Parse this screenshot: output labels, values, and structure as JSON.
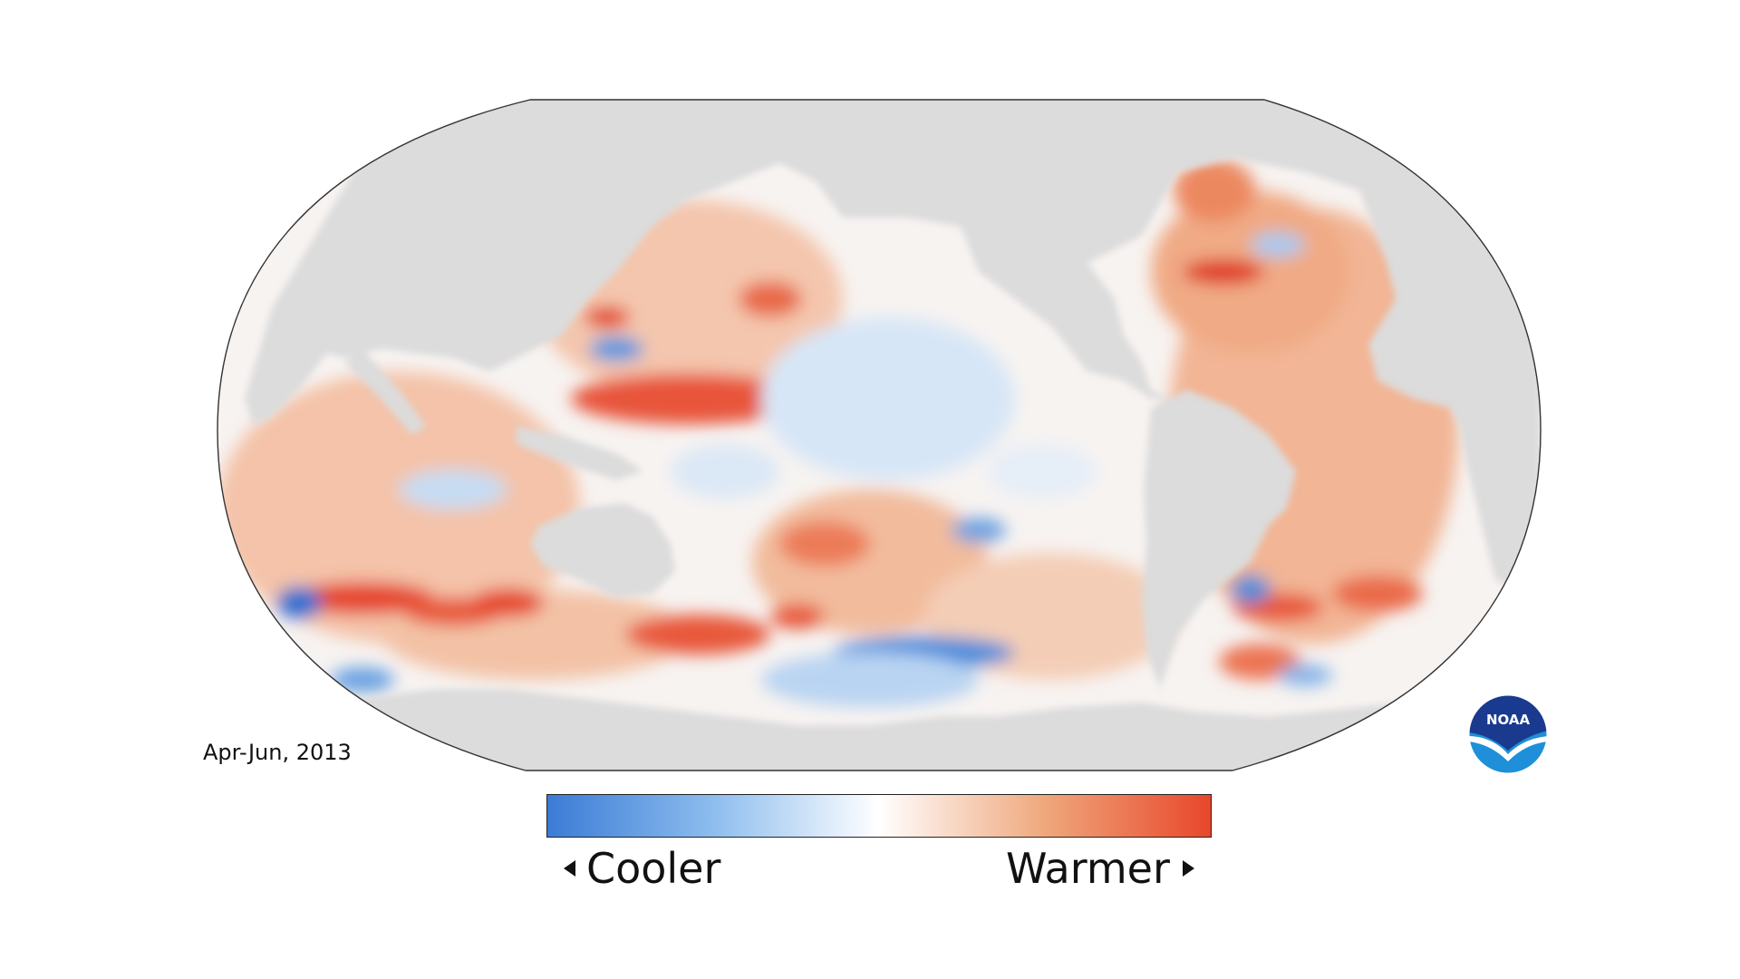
{
  "map": {
    "type": "global sea surface temperature anomaly map",
    "projection": "Robinson",
    "land_color": "#dcdcdc",
    "period_label": "Apr-Jun, 2013"
  },
  "legend": {
    "cool_label": "Cooler",
    "warm_label": "Warmer",
    "colors": {
      "cool": "#3a7bd5",
      "neutral": "#ffffff",
      "warm": "#e8462a"
    }
  },
  "logo": {
    "text": "NOAA",
    "icon": "noaa-logo-icon",
    "colors": {
      "top": "#1a3a8f",
      "bottom": "#1e8fd8"
    }
  }
}
